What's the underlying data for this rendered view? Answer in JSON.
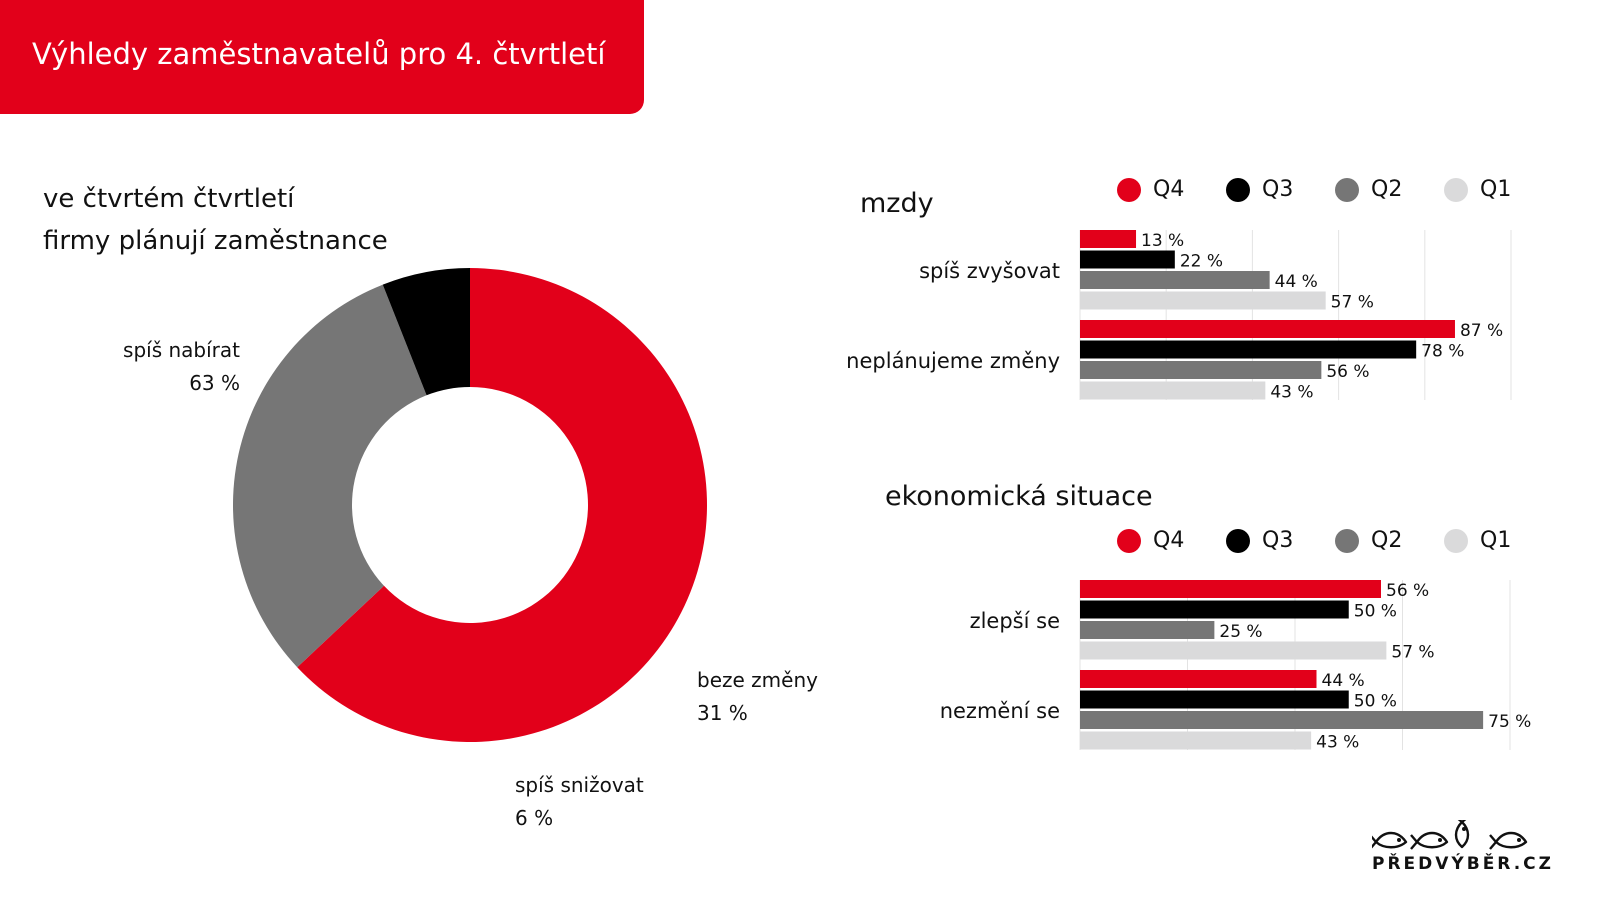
{
  "header": {
    "title": "Výhledy zaměstnavatelů pro 4. čtvrtletí"
  },
  "colors": {
    "Q4": "#e2001a",
    "Q3": "#000000",
    "Q2": "#767676",
    "Q1": "#dadadb"
  },
  "legend": [
    "Q4",
    "Q3",
    "Q2",
    "Q1"
  ],
  "logo": {
    "text": "PŘEDVÝBĚR.CZ"
  },
  "chart_data": [
    {
      "type": "pie",
      "subtype": "donut",
      "title": [
        "ve čtvrtém čtvrtletí",
        "firmy plánují zaměstnance"
      ],
      "slices": [
        {
          "label": "spíš nabírat",
          "value": 63,
          "value_label": "63 %",
          "color": "#e2001a"
        },
        {
          "label": "beze změny",
          "value": 31,
          "value_label": "31 %",
          "color": "#767676"
        },
        {
          "label": "spíš snižovat",
          "value": 6,
          "value_label": "6 %",
          "color": "#000000"
        }
      ]
    },
    {
      "type": "bar",
      "orientation": "horizontal",
      "title": "mzdy",
      "legend_placement": "top",
      "grid": true,
      "xlim": [
        0,
        100
      ],
      "categories": [
        "spíš zvyšovat",
        "neplánujeme změny"
      ],
      "series": [
        {
          "name": "Q4",
          "values": [
            13,
            87
          ],
          "labels": [
            "13 %",
            "87 %"
          ]
        },
        {
          "name": "Q3",
          "values": [
            22,
            78
          ],
          "labels": [
            "22 %",
            "78 %"
          ]
        },
        {
          "name": "Q2",
          "values": [
            44,
            56
          ],
          "labels": [
            "44 %",
            "56 %"
          ]
        },
        {
          "name": "Q1",
          "values": [
            57,
            43
          ],
          "labels": [
            "57 %",
            "43 %"
          ]
        }
      ]
    },
    {
      "type": "bar",
      "orientation": "horizontal",
      "title": "ekonomická situace",
      "legend_placement": "top",
      "grid": true,
      "xlim": [
        0,
        80
      ],
      "categories": [
        "zlepší se",
        "nezmění se"
      ],
      "series": [
        {
          "name": "Q4",
          "values": [
            56,
            44
          ],
          "labels": [
            "56 %",
            "44 %"
          ]
        },
        {
          "name": "Q3",
          "values": [
            50,
            50
          ],
          "labels": [
            "50 %",
            "50 %"
          ]
        },
        {
          "name": "Q2",
          "values": [
            25,
            75
          ],
          "labels": [
            "25 %",
            "75 %"
          ]
        },
        {
          "name": "Q1",
          "values": [
            57,
            43
          ],
          "labels": [
            "57 %",
            "43 %"
          ]
        }
      ]
    }
  ]
}
